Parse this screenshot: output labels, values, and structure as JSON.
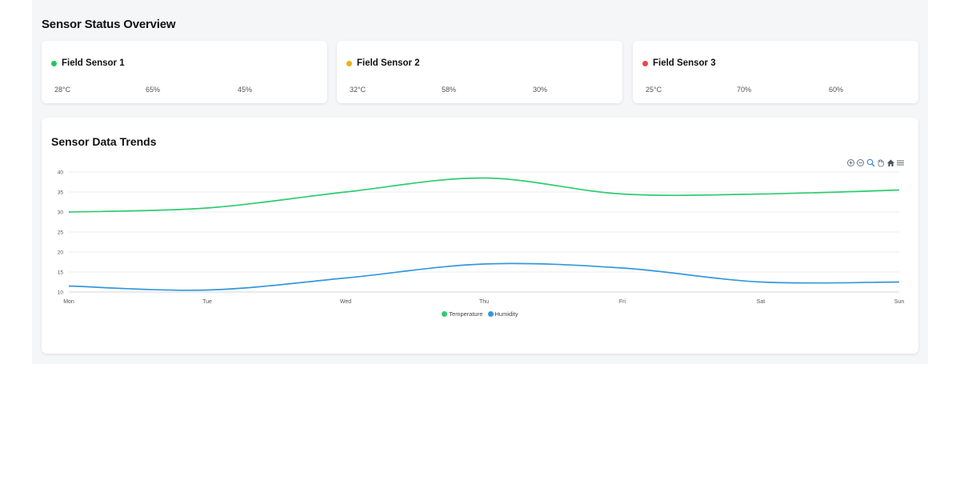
{
  "overview": {
    "title": "Sensor Status Overview",
    "sensors": [
      {
        "name": "Field Sensor 1",
        "status_color": "#22c55e",
        "temperature": "28°C",
        "humidity": "65%",
        "moisture": "45%"
      },
      {
        "name": "Field Sensor 2",
        "status_color": "#eab308",
        "temperature": "32°C",
        "humidity": "58%",
        "moisture": "30%"
      },
      {
        "name": "Field Sensor 3",
        "status_color": "#ef4444",
        "temperature": "25°C",
        "humidity": "70%",
        "moisture": "60%"
      }
    ]
  },
  "trends": {
    "title": "Sensor Data Trends",
    "toolbar": [
      "zoom-in-icon",
      "zoom-out-icon",
      "zoom-selection-icon",
      "pan-icon",
      "reset-home-icon",
      "menu-icon"
    ]
  },
  "chart_data": {
    "type": "line",
    "categories": [
      "Mon",
      "Tue",
      "Wed",
      "Thu",
      "Fri",
      "Sat",
      "Sun"
    ],
    "series": [
      {
        "name": "Temperature",
        "color": "#2ecc71",
        "values": [
          30,
          31,
          35,
          38.5,
          34.5,
          34.5,
          35.5
        ]
      },
      {
        "name": "Humidity",
        "color": "#3498db",
        "values": [
          11.5,
          10.5,
          13.5,
          17,
          16,
          12.5,
          12.5
        ]
      }
    ],
    "ylim": [
      10,
      40
    ],
    "yticks": [
      10,
      15,
      20,
      25,
      30,
      35,
      40
    ],
    "grid": true,
    "legend": "bottom-center",
    "title": "",
    "xlabel": "",
    "ylabel": ""
  }
}
